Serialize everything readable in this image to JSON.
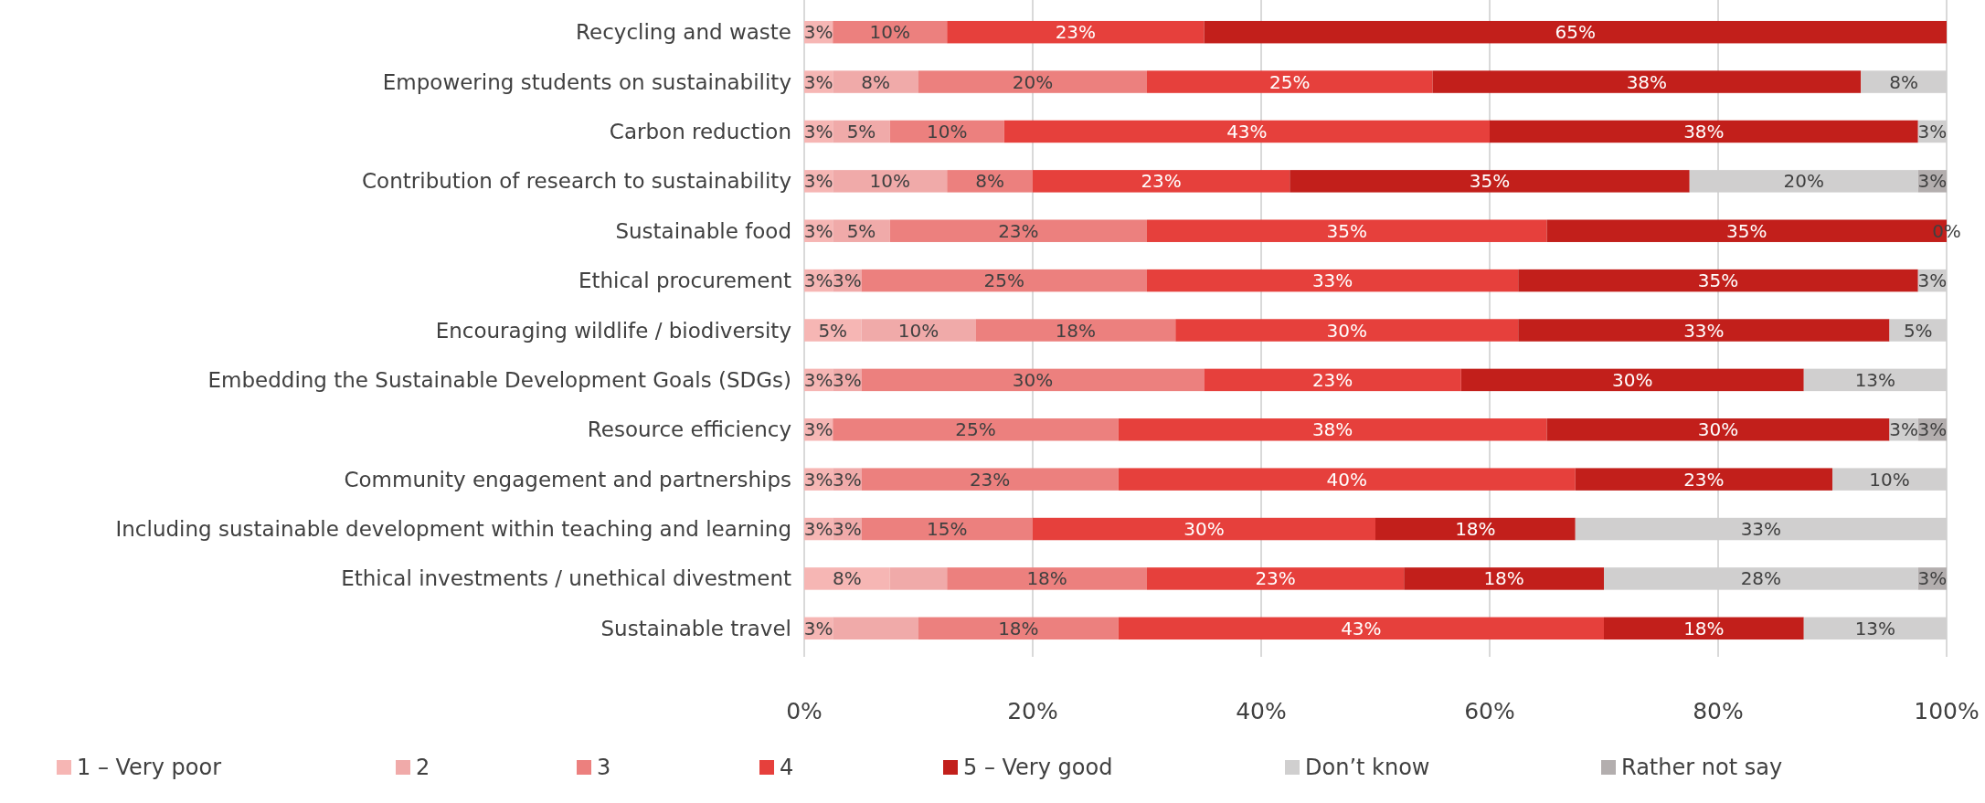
{
  "chart_data": {
    "type": "bar",
    "orientation": "horizontal",
    "stacked": true,
    "categories": [
      "Recycling and waste",
      "Empowering students on sustainability",
      "Carbon reduction",
      "Contribution of research to sustainability",
      "Sustainable food",
      "Ethical procurement",
      "Encouraging wildlife / biodiversity",
      "Embedding the Sustainable Development Goals (SDGs)",
      "Resource efficiency",
      "Community engagement and partnerships",
      "Including sustainable development within teaching and learning",
      "Ethical investments / unethical divestment",
      "Sustainable travel"
    ],
    "series": [
      {
        "name": "1 – Very poor",
        "color": "#f6b6b4",
        "values": [
          2.5,
          2.5,
          2.5,
          2.5,
          2.5,
          2.5,
          5,
          2.5,
          2.5,
          2.5,
          2.5,
          7.5,
          2.5
        ],
        "value_labels": [
          "3%",
          "3%",
          "3%",
          "3%",
          "3%",
          "3%",
          "5%",
          "3%",
          "3%",
          "3%",
          "3%",
          "8%",
          "3%"
        ]
      },
      {
        "name": "2",
        "color": "#f0aaa9",
        "values": [
          null,
          7.5,
          5,
          10,
          5,
          2.5,
          10,
          2.5,
          null,
          2.5,
          2.5,
          5,
          7.5
        ],
        "value_labels": [
          null,
          "8%",
          "5%",
          "10%",
          "5%",
          "3%",
          "10%",
          "3%",
          null,
          "3%",
          "3%",
          null,
          null
        ]
      },
      {
        "name": "3",
        "color": "#ec807e",
        "values": [
          10,
          20,
          10,
          7.5,
          22.5,
          25,
          17.5,
          30,
          25,
          22.5,
          15,
          17.5,
          17.5
        ],
        "value_labels": [
          "10%",
          "20%",
          "10%",
          "8%",
          "23%",
          "25%",
          "18%",
          "30%",
          "25%",
          "23%",
          "15%",
          "18%",
          "18%"
        ]
      },
      {
        "name": "4",
        "color": "#e6403c",
        "values": [
          22.5,
          25,
          42.5,
          22.5,
          35,
          32.5,
          30,
          22.5,
          37.5,
          40,
          30,
          22.5,
          42.5
        ],
        "value_labels": [
          "23%",
          "25%",
          "43%",
          "23%",
          "35%",
          "33%",
          "30%",
          "23%",
          "38%",
          "40%",
          "30%",
          "23%",
          "43%"
        ]
      },
      {
        "name": "5 – Very good",
        "color": "#c21f1b",
        "values": [
          65,
          37.5,
          37.5,
          35,
          35,
          35,
          32.5,
          30,
          30,
          22.5,
          17.5,
          17.5,
          17.5
        ],
        "value_labels": [
          "65%",
          "38%",
          "38%",
          "35%",
          "35%",
          "35%",
          "33%",
          "30%",
          "30%",
          "23%",
          "18%",
          "18%",
          "18%"
        ]
      },
      {
        "name": "Don’t know",
        "color": "#d0cfcf",
        "values": [
          null,
          7.5,
          2.5,
          20,
          null,
          2.5,
          5,
          12.5,
          2.5,
          10,
          32.5,
          27.5,
          12.5
        ],
        "value_labels": [
          null,
          "8%",
          "3%",
          "20%",
          null,
          "3%",
          "5%",
          "13%",
          "3%",
          "10%",
          "33%",
          "28%",
          "13%"
        ]
      },
      {
        "name": "Rather not say",
        "color": "#b3aeae",
        "values": [
          null,
          null,
          null,
          2.5,
          0,
          null,
          null,
          null,
          2.5,
          null,
          null,
          2.5,
          null
        ],
        "value_labels": [
          null,
          null,
          null,
          "3%",
          "0%",
          null,
          null,
          null,
          "3%",
          null,
          null,
          "3%",
          null
        ]
      }
    ],
    "xlim": [
      0,
      100
    ],
    "xticks": [
      {
        "value": 0,
        "label": "0%"
      },
      {
        "value": 20,
        "label": "20%"
      },
      {
        "value": 40,
        "label": "40%"
      },
      {
        "value": 60,
        "label": "60%"
      },
      {
        "value": 80,
        "label": "80%"
      },
      {
        "value": 100,
        "label": "100%"
      }
    ],
    "grid": "x",
    "legend": "bottom"
  }
}
